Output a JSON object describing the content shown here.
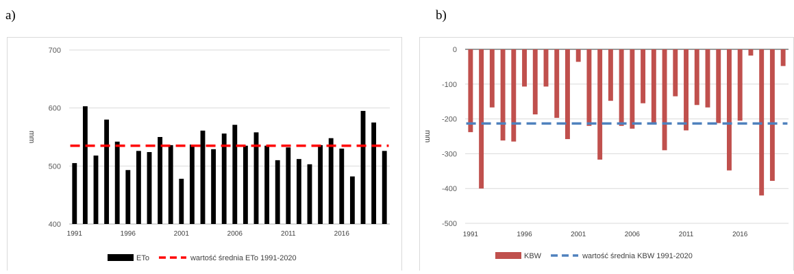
{
  "panels": {
    "a": "a)",
    "b": "b)"
  },
  "chart_data": [
    {
      "type": "bar",
      "title": "",
      "xlabel": "",
      "ylabel": "mm",
      "ylim": [
        400,
        700
      ],
      "yticks": [
        400,
        500,
        600,
        700
      ],
      "x": [
        1991,
        1992,
        1993,
        1994,
        1995,
        1996,
        1997,
        1998,
        1999,
        2000,
        2001,
        2002,
        2003,
        2004,
        2005,
        2006,
        2007,
        2008,
        2009,
        2010,
        2011,
        2012,
        2013,
        2014,
        2015,
        2016,
        2017,
        2018,
        2019,
        2020
      ],
      "xtick_labels": [
        "1991",
        "1996",
        "2001",
        "2006",
        "2011",
        "2016"
      ],
      "grid": true,
      "legend_position": "bottom",
      "series": [
        {
          "name": "ETo",
          "kind": "bar",
          "color": "#000000",
          "values": [
            505,
            603,
            518,
            580,
            542,
            493,
            526,
            524,
            550,
            536,
            478,
            537,
            561,
            529,
            556,
            571,
            535,
            558,
            535,
            510,
            532,
            512,
            503,
            536,
            548,
            530,
            482,
            595,
            575,
            526
          ]
        },
        {
          "name": "wartość średnia ETo 1991-2020",
          "kind": "line",
          "style": "dashed",
          "color": "#ff0000",
          "values": [
            535,
            535,
            535,
            535,
            535,
            535,
            535,
            535,
            535,
            535,
            535,
            535,
            535,
            535,
            535,
            535,
            535,
            535,
            535,
            535,
            535,
            535,
            535,
            535,
            535,
            535,
            535,
            535,
            535,
            535
          ]
        }
      ]
    },
    {
      "type": "bar",
      "title": "",
      "xlabel": "",
      "ylabel": "mm",
      "ylim": [
        -500,
        0
      ],
      "yticks": [
        0,
        -100,
        -200,
        -300,
        -400,
        -500
      ],
      "x": [
        1991,
        1992,
        1993,
        1994,
        1995,
        1996,
        1997,
        1998,
        1999,
        2000,
        2001,
        2002,
        2003,
        2004,
        2005,
        2006,
        2007,
        2008,
        2009,
        2010,
        2011,
        2012,
        2013,
        2014,
        2015,
        2016,
        2017,
        2018,
        2019,
        2020
      ],
      "xtick_labels": [
        "1991",
        "1996",
        "2001",
        "2006",
        "2011",
        "2016"
      ],
      "grid": true,
      "legend_position": "bottom",
      "series": [
        {
          "name": "KBW",
          "kind": "bar",
          "color": "#c0504d",
          "values": [
            -238,
            -400,
            -167,
            -262,
            -265,
            -107,
            -187,
            -107,
            -197,
            -258,
            -36,
            -220,
            -317,
            -148,
            -220,
            -228,
            -155,
            -212,
            -290,
            -135,
            -233,
            -160,
            -167,
            -212,
            -348,
            -205,
            -18,
            -420,
            -378,
            -48
          ]
        },
        {
          "name": "wartość średnia KBW 1991-2020",
          "kind": "line",
          "style": "dashed",
          "color": "#4f81bd",
          "values": [
            -213,
            -213,
            -213,
            -213,
            -213,
            -213,
            -213,
            -213,
            -213,
            -213,
            -213,
            -213,
            -213,
            -213,
            -213,
            -213,
            -213,
            -213,
            -213,
            -213,
            -213,
            -213,
            -213,
            -213,
            -213,
            -213,
            -213,
            -213,
            -213,
            -213
          ]
        }
      ]
    }
  ]
}
